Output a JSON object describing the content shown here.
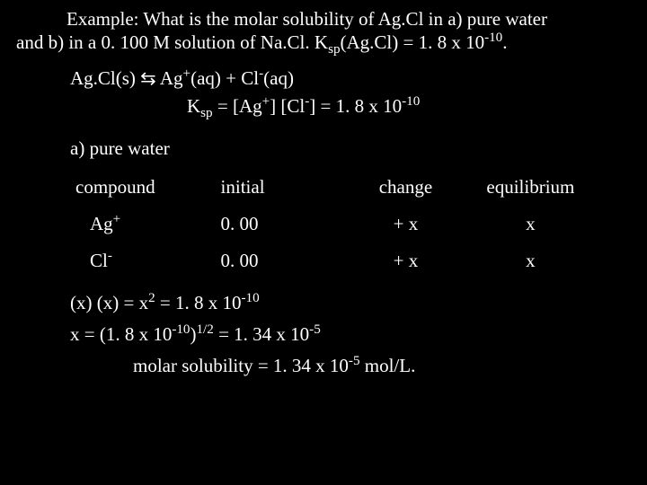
{
  "intro": {
    "line1_pre": "Example: What is the molar solubility of Ag.Cl in a) pure water",
    "line2_pre": "and b) in a 0. 100 M solution of Na.Cl.  K",
    "ksp_sub": "sp",
    "line2_post": "(Ag.Cl) = 1. 8 x 10",
    "exp_neg10": "-10",
    "period": "."
  },
  "reaction": {
    "lhs": "Ag.Cl(s) ",
    "arrow": "⇆",
    "rhs_pre": " Ag",
    "ag_charge": "+",
    "aq1": "(aq) + Cl",
    "cl_charge": "-",
    "aq2": "(aq)"
  },
  "ksp_expr": {
    "K": "K",
    "sp": "sp",
    "mid1": " = [Ag",
    "plus": "+",
    "mid2": "] [Cl",
    "minus": "-",
    "mid3": "] = 1. 8 x 10",
    "exp": "-10"
  },
  "section_a": "a) pure water",
  "table": {
    "headers": {
      "compound": "compound",
      "initial": "initial",
      "change": "change",
      "equilibrium": "equilibrium"
    },
    "rows": [
      {
        "species_base": "Ag",
        "species_sup": "+",
        "initial": "0. 00",
        "change": "+ x",
        "equilibrium": "x"
      },
      {
        "species_base": "Cl",
        "species_sup": "-",
        "initial": "0. 00",
        "change": "+ x",
        "equilibrium": "x"
      }
    ]
  },
  "calc1": {
    "pre": "(x) (x) = x",
    "sq": "2",
    "mid": " = 1. 8 x 10",
    "exp": "-10"
  },
  "calc2": {
    "pre": "x = (1. 8 x 10",
    "exp1": "-10",
    "mid": ")",
    "half": "1/2",
    "post": " = 1. 34 x 10",
    "exp2": "-5"
  },
  "result": {
    "pre": "molar solubility = 1. 34 x 10",
    "exp": "-5",
    "post": " mol/L."
  }
}
